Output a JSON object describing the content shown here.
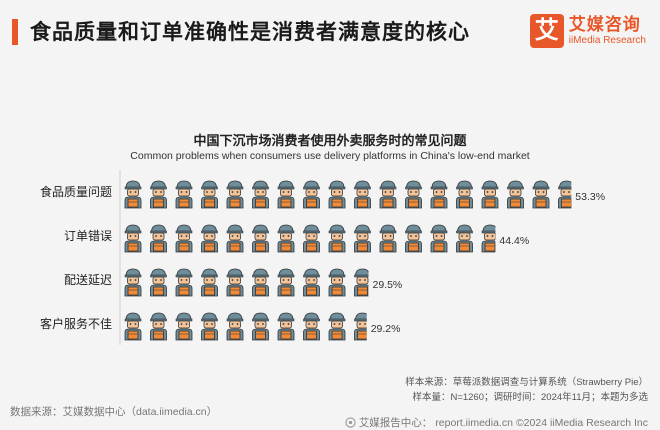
{
  "header": {
    "headline": "食品质量和订单准确性是消费者满意度的核心"
  },
  "brand": {
    "logo_char": "艾",
    "name_cn": "艾媒咨询",
    "name_en": "iiMedia Research",
    "accent_color": "#e8572a"
  },
  "chart_data": {
    "type": "bar",
    "title": "中国下沉市场消费者使用外卖服务时的常见问题",
    "subtitle": "Common problems when consumers use delivery platforms in China's low-end market",
    "categories": [
      "食品质量问题",
      "订单错误",
      "配送延迟",
      "客户服务不佳"
    ],
    "values": [
      53.3,
      44.4,
      29.5,
      29.2
    ],
    "value_labels": [
      "53.3%",
      "44.4%",
      "29.5%",
      "29.2%"
    ],
    "unit": "%",
    "icon": "delivery-person-icon",
    "percent_per_icon": 3.0,
    "icon_colors": {
      "cap": "#6f8e9c",
      "face": "#f2c49b",
      "box": "#ef8a3b",
      "shirt": "#6f8e9c",
      "outline": "#333333"
    }
  },
  "notes": {
    "sample_source": "样本来源：草莓派数据调查与计算系统（Strawberry Pie）",
    "sample_size": "样本量：N=1260；调研时间：2024年11月；本题为多选"
  },
  "footer": {
    "data_source": "数据来源：艾媒数据中心（data.iimedia.cn）",
    "report_label": "艾媒报告中心：",
    "report_url": "report.iimedia.cn",
    "copyright": "©2024  iiMedia Research  Inc"
  }
}
